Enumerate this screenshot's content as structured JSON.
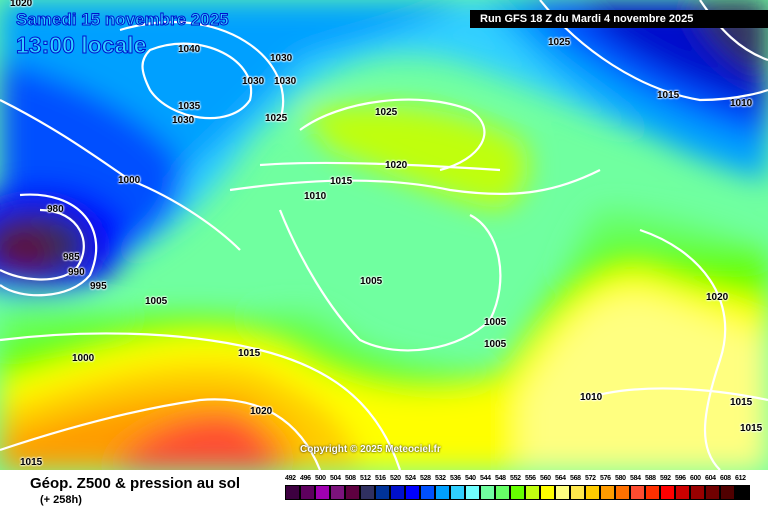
{
  "header": {
    "date": "Samedi 15 novembre 2025",
    "time": "13:00 locale",
    "run": "Run GFS 18 Z du Mardi 4 novembre 2025"
  },
  "copyright": "Copyright © 2025 Meteociel.fr",
  "footer": {
    "title": "Géop. Z500 & pression au sol",
    "subtitle": "(+ 258h)"
  },
  "pressure_labels": [
    "1020",
    "1040",
    "1030",
    "1030",
    "1030",
    "1035",
    "1030",
    "1025",
    "1025",
    "1025",
    "1015",
    "1010",
    "1020",
    "1015",
    "1010",
    "1000",
    "980",
    "985",
    "990",
    "995",
    "1005",
    "1005",
    "1005",
    "1005",
    "1000",
    "1015",
    "1020",
    "1010",
    "1015",
    "1015",
    "1020",
    "1015"
  ],
  "legend": {
    "unit_values": [
      "492",
      "496",
      "500",
      "504",
      "508",
      "512",
      "516",
      "520",
      "524",
      "528",
      "532",
      "536",
      "540",
      "544",
      "548",
      "552",
      "556",
      "560",
      "564",
      "568",
      "572",
      "576",
      "580",
      "584",
      "588",
      "592",
      "596",
      "600",
      "604",
      "608",
      "612"
    ],
    "colors": [
      "#3d0040",
      "#5e005e",
      "#a000b0",
      "#7c137c",
      "#5e0040",
      "#303060",
      "#003399",
      "#0010cc",
      "#0000ff",
      "#0050ff",
      "#00a0ff",
      "#30d0ff",
      "#70ffff",
      "#70ffa0",
      "#66ff66",
      "#66ff00",
      "#c0ff10",
      "#ffff00",
      "#ffff80",
      "#ffe84c",
      "#ffcc00",
      "#ff9c00",
      "#ff7000",
      "#ff4c30",
      "#ff3000",
      "#ff0000",
      "#cc0000",
      "#990000",
      "#700000",
      "#500000",
      "#000000"
    ]
  }
}
